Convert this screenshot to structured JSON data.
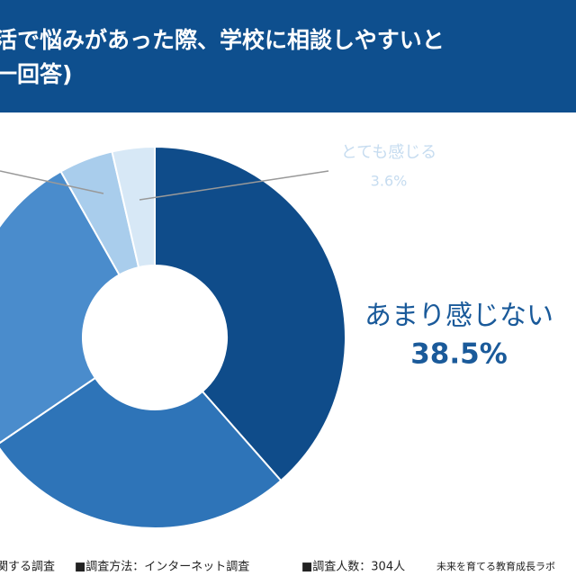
{
  "chart_data": {
    "type": "donut",
    "title": [
      "活で悩みがあった際、学校に相談しやすいと",
      "一回答)"
    ],
    "categories": [
      "あまり感じない",
      null,
      null,
      null,
      "とても感じる"
    ],
    "values": [
      38.5,
      27.0,
      26.3,
      4.6,
      3.6
    ],
    "value_labels": [
      "38.5%",
      null,
      null,
      null,
      "3.6%"
    ],
    "colors": [
      "#0f4c8a",
      "#2e74b8",
      "#4a8ccc",
      "#a9cdec",
      "#d7e8f6"
    ],
    "footer": [
      "関する調査",
      "■調査方法：インターネット調査",
      "■調査人数：304人",
      "未来を育てる教育成長ラボ"
    ]
  }
}
